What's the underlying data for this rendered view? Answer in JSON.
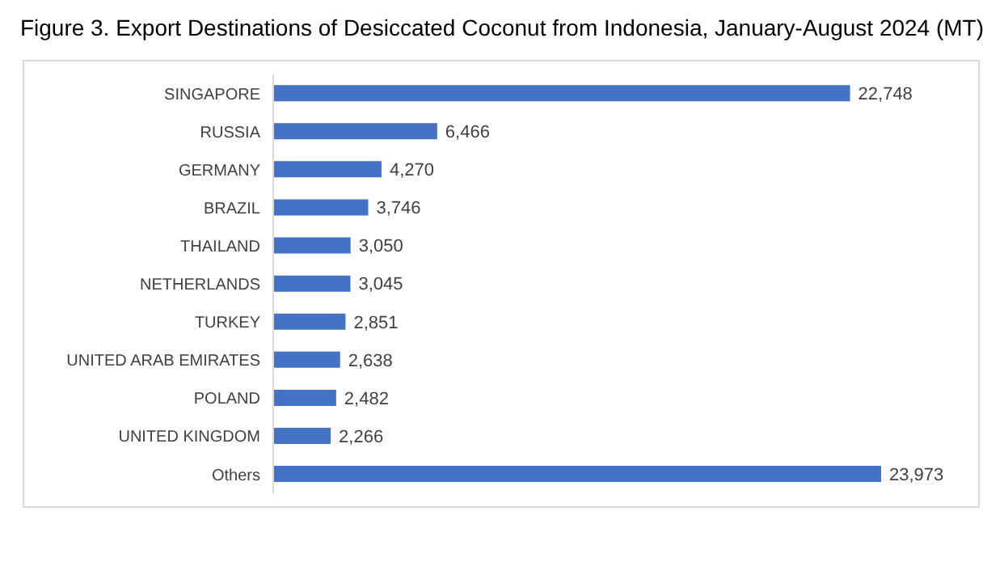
{
  "chart_data": {
    "type": "bar",
    "orientation": "horizontal",
    "title": "Figure 3. Export Destinations of Desiccated Coconut from Indonesia, January-August 2024 (MT)",
    "categories": [
      "SINGAPORE",
      "RUSSIA",
      "GERMANY",
      "BRAZIL",
      "THAILAND",
      "NETHERLANDS",
      "TURKEY",
      "UNITED ARAB EMIRATES",
      "POLAND",
      "UNITED KINGDOM",
      "Others"
    ],
    "values": [
      22748,
      6466,
      4270,
      3746,
      3050,
      3045,
      2851,
      2638,
      2482,
      2266,
      23973
    ],
    "value_labels": [
      "22,748",
      "6,466",
      "4,270",
      "3,746",
      "3,050",
      "3,045",
      "2,851",
      "2,638",
      "2,482",
      "2,266",
      "23,973"
    ],
    "color": "#4472c4",
    "grid": false,
    "legend": false
  }
}
